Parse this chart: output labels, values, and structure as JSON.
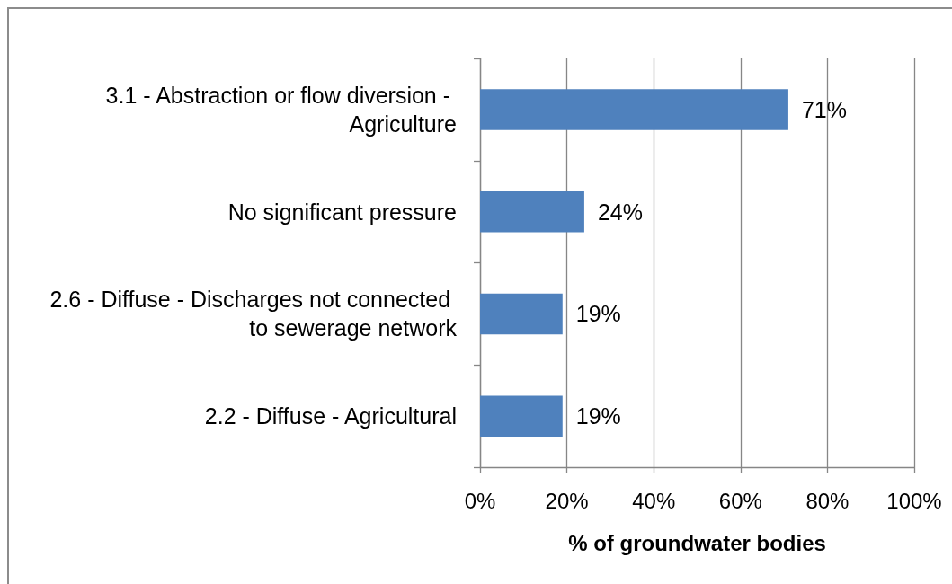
{
  "chart_data": {
    "type": "bar",
    "orientation": "horizontal",
    "xlabel": "% of groundwater bodies",
    "categories": [
      "3.1 - Abstraction or flow diversion - Agriculture",
      "No significant pressure",
      "2.6 - Diffuse - Discharges not connected to sewerage network",
      "2.2 - Diffuse - Agricultural"
    ],
    "values": [
      71,
      24,
      19,
      19
    ],
    "color": "#4f81bd",
    "value_labels": [
      "71%",
      "24%",
      "19%",
      "19%"
    ],
    "xlim": [
      0,
      100
    ],
    "xticks": [
      {
        "value": 0,
        "label": "0%"
      },
      {
        "value": 20,
        "label": "20%"
      },
      {
        "value": 40,
        "label": "40%"
      },
      {
        "value": 60,
        "label": "60%"
      },
      {
        "value": 80,
        "label": "80%"
      },
      {
        "value": 100,
        "label": "100%"
      }
    ],
    "grid": "x"
  }
}
